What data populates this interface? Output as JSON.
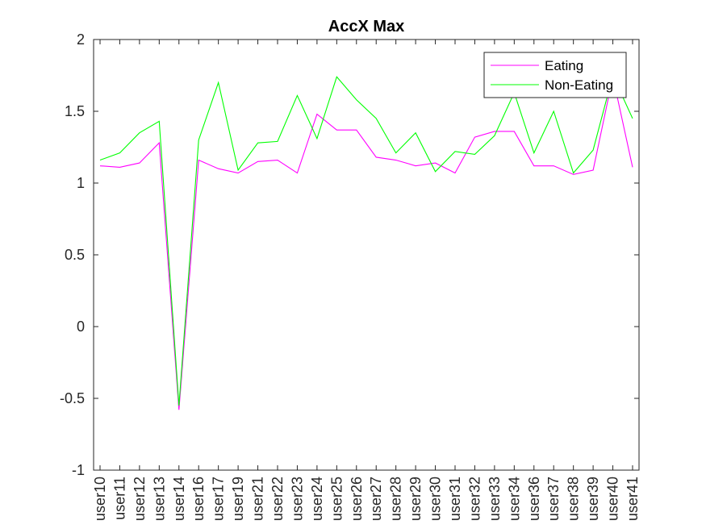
{
  "chart_data": {
    "type": "line",
    "title": "AccX Max",
    "xlabel": "",
    "ylabel": "",
    "categories": [
      "user10",
      "user11",
      "user12",
      "user13",
      "user14",
      "user16",
      "user17",
      "user19",
      "user21",
      "user22",
      "user23",
      "user24",
      "user25",
      "user26",
      "user27",
      "user28",
      "user29",
      "user30",
      "user31",
      "user32",
      "user33",
      "user34",
      "user36",
      "user37",
      "user38",
      "user39",
      "user40",
      "user41"
    ],
    "ylim": [
      -1,
      2
    ],
    "yticks": [
      -1,
      -0.5,
      0,
      0.5,
      1,
      1.5,
      2
    ],
    "ytick_labels": [
      "-1",
      "-0.5",
      "0",
      "0.5",
      "1",
      "1.5",
      "2"
    ],
    "grid": false,
    "legend_position": "top-right",
    "series": [
      {
        "name": "Eating",
        "color": "#ff00ff",
        "values": [
          1.12,
          1.11,
          1.14,
          1.28,
          -0.58,
          1.16,
          1.1,
          1.07,
          1.15,
          1.16,
          1.07,
          1.48,
          1.37,
          1.37,
          1.18,
          1.16,
          1.12,
          1.14,
          1.07,
          1.32,
          1.36,
          1.36,
          1.12,
          1.12,
          1.06,
          1.09,
          1.74,
          1.11
        ]
      },
      {
        "name": "Non-Eating",
        "color": "#00ff00",
        "values": [
          1.16,
          1.21,
          1.35,
          1.43,
          -0.55,
          1.3,
          1.7,
          1.09,
          1.28,
          1.29,
          1.61,
          1.31,
          1.74,
          1.58,
          1.45,
          1.21,
          1.35,
          1.08,
          1.22,
          1.2,
          1.33,
          1.63,
          1.21,
          1.5,
          1.07,
          1.23,
          1.75,
          1.45
        ]
      }
    ]
  }
}
